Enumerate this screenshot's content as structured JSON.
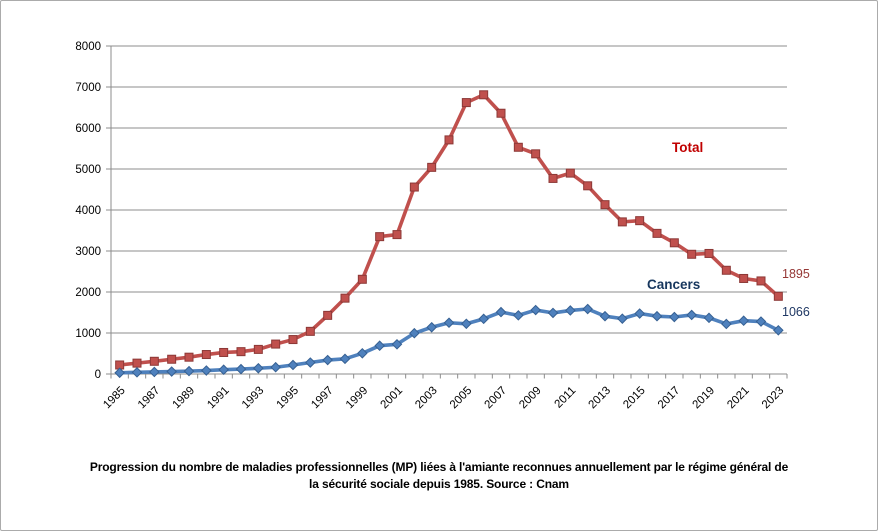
{
  "figure": {
    "background": "#ffffff",
    "border_color": "#ababab",
    "gridline_color": "#8c8c8c",
    "axis_color": "#8c8c8c",
    "tick_label_color": "#000000"
  },
  "chart_data": {
    "type": "line",
    "title": "",
    "xlabel": "",
    "ylabel": "",
    "ylim": [
      0,
      8000
    ],
    "ytick_step": 1000,
    "grid": "horizontal",
    "legend_position": "none (inline series annotations)",
    "y_tick_labels": [
      "0",
      "1000",
      "2000",
      "3000",
      "4000",
      "5000",
      "6000",
      "7000",
      "8000"
    ],
    "x": [
      1985,
      1986,
      1987,
      1988,
      1989,
      1990,
      1991,
      1992,
      1993,
      1994,
      1995,
      1996,
      1997,
      1998,
      1999,
      2000,
      2001,
      2002,
      2003,
      2004,
      2005,
      2006,
      2007,
      2008,
      2009,
      2010,
      2011,
      2012,
      2013,
      2014,
      2015,
      2016,
      2017,
      2018,
      2019,
      2020,
      2021,
      2022,
      2023
    ],
    "x_tick_labels": [
      "1985",
      "1987",
      "1989",
      "1991",
      "1993",
      "1995",
      "1997",
      "1999",
      "2001",
      "2003",
      "2005",
      "2007",
      "2009",
      "2011",
      "2013",
      "2015",
      "2017",
      "2019",
      "2021",
      "2023"
    ],
    "series": [
      {
        "name": "Total",
        "marker": "square",
        "color": "#C0504D",
        "marker_border": "#8C3836",
        "name_label_color": "#C00000",
        "end_label": "1895",
        "end_label_color": "#953735",
        "values": [
          220,
          265,
          310,
          360,
          410,
          475,
          525,
          545,
          600,
          730,
          840,
          1040,
          1430,
          1850,
          2310,
          3350,
          3400,
          4560,
          5040,
          5710,
          6620,
          6810,
          6360,
          5530,
          5370,
          4770,
          4900,
          4590,
          4130,
          3710,
          3740,
          3430,
          3200,
          2920,
          2940,
          2530,
          2330,
          2270,
          1895
        ]
      },
      {
        "name": "Cancers",
        "marker": "diamond",
        "color": "#4F81BD",
        "marker_border": "#366092",
        "name_label_color": "#17375E",
        "end_label": "1066",
        "end_label_color": "#1F3864",
        "values": [
          30,
          40,
          50,
          60,
          70,
          85,
          105,
          120,
          140,
          165,
          220,
          280,
          340,
          370,
          505,
          690,
          725,
          995,
          1140,
          1250,
          1225,
          1345,
          1510,
          1430,
          1560,
          1490,
          1550,
          1585,
          1410,
          1350,
          1475,
          1410,
          1390,
          1440,
          1370,
          1220,
          1300,
          1280,
          1066
        ]
      }
    ]
  },
  "caption": {
    "line1": "Progression du nombre de maladies professionnelles (MP) liées à l'amiante reconnues annuellement par le régime général de",
    "line2": "la sécurité sociale depuis 1985. Source : Cnam"
  }
}
